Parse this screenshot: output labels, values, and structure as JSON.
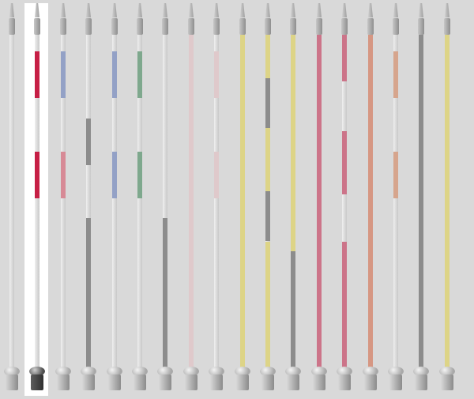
{
  "palette": {
    "background": "#d9d9d9",
    "crimson": "#c61f45",
    "blue": "#93a1c6",
    "green": "#7ea88d",
    "gray": "#8c8c8c",
    "pink": "#d78a96",
    "lightpink": "#dfc9cb",
    "yellow": "#ddd487",
    "rose": "#cc7489",
    "salmon": "#d69783",
    "peach": "#d6a58d"
  },
  "poles": [
    {
      "name": "pole-1",
      "selected": false,
      "segments": []
    },
    {
      "name": "pole-2",
      "selected": true,
      "segments": [
        {
          "fill": 0.05,
          "height": 0.14,
          "color": "#c61f45"
        },
        {
          "fill": 0.35,
          "height": 0.14,
          "color": "#c61f45"
        }
      ]
    },
    {
      "name": "pole-3",
      "selected": false,
      "segments": [
        {
          "fill": 0.05,
          "height": 0.14,
          "color": "#93a1c6"
        },
        {
          "fill": 0.35,
          "height": 0.14,
          "color": "#d78a96"
        }
      ]
    },
    {
      "name": "pole-4",
      "selected": false,
      "segments": [
        {
          "fill": 0.25,
          "height": 0.14,
          "color": "#8c8c8c"
        },
        {
          "fill": 0.55,
          "height": 0.45,
          "color": "#8c8c8c"
        }
      ]
    },
    {
      "name": "pole-5",
      "selected": false,
      "segments": [
        {
          "fill": 0.05,
          "height": 0.14,
          "color": "#93a1c6"
        },
        {
          "fill": 0.35,
          "height": 0.14,
          "color": "#93a1c6"
        }
      ]
    },
    {
      "name": "pole-6",
      "selected": false,
      "segments": [
        {
          "fill": 0.05,
          "height": 0.14,
          "color": "#7ea88d"
        },
        {
          "fill": 0.35,
          "height": 0.14,
          "color": "#7ea88d"
        }
      ]
    },
    {
      "name": "pole-7",
      "selected": false,
      "segments": [
        {
          "fill": 0.55,
          "height": 0.45,
          "color": "#8c8c8c"
        }
      ]
    },
    {
      "name": "pole-8",
      "selected": false,
      "segments": [
        {
          "fill": 0.0,
          "height": 1.0,
          "color": "#dfc9cb"
        }
      ]
    },
    {
      "name": "pole-9",
      "selected": false,
      "segments": [
        {
          "fill": 0.05,
          "height": 0.14,
          "color": "#dfc9cb"
        },
        {
          "fill": 0.35,
          "height": 0.14,
          "color": "#dfc9cb"
        }
      ]
    },
    {
      "name": "pole-10",
      "selected": false,
      "segments": [
        {
          "fill": 0.0,
          "height": 1.0,
          "color": "#ddd487"
        }
      ]
    },
    {
      "name": "pole-11",
      "selected": false,
      "segments": [
        {
          "fill": 0.0,
          "height": 0.13,
          "color": "#ddd487"
        },
        {
          "fill": 0.13,
          "height": 0.15,
          "color": "#8c8c8c"
        },
        {
          "fill": 0.28,
          "height": 0.19,
          "color": "#ddd487"
        },
        {
          "fill": 0.47,
          "height": 0.15,
          "color": "#8c8c8c"
        },
        {
          "fill": 0.62,
          "height": 0.38,
          "color": "#ddd487"
        }
      ]
    },
    {
      "name": "pole-12",
      "selected": false,
      "segments": [
        {
          "fill": 0.0,
          "height": 0.65,
          "color": "#ddd487"
        },
        {
          "fill": 0.65,
          "height": 0.35,
          "color": "#8c8c8c"
        }
      ]
    },
    {
      "name": "pole-13",
      "selected": false,
      "segments": [
        {
          "fill": 0.0,
          "height": 1.0,
          "color": "#cc7489"
        }
      ]
    },
    {
      "name": "pole-14",
      "selected": false,
      "segments": [
        {
          "fill": 0.0,
          "height": 0.14,
          "color": "#cc7489"
        },
        {
          "fill": 0.29,
          "height": 0.19,
          "color": "#cc7489"
        },
        {
          "fill": 0.62,
          "height": 0.38,
          "color": "#cc7489"
        }
      ]
    },
    {
      "name": "pole-15",
      "selected": false,
      "segments": [
        {
          "fill": 0.0,
          "height": 1.0,
          "color": "#d69783"
        }
      ]
    },
    {
      "name": "pole-16",
      "selected": false,
      "segments": [
        {
          "fill": 0.05,
          "height": 0.14,
          "color": "#d6a58d"
        },
        {
          "fill": 0.35,
          "height": 0.14,
          "color": "#d6a58d"
        }
      ]
    },
    {
      "name": "pole-17",
      "selected": false,
      "segments": [
        {
          "fill": 0.0,
          "height": 1.0,
          "color": "#8c8c8c"
        }
      ]
    },
    {
      "name": "pole-18",
      "selected": false,
      "segments": [
        {
          "fill": 0.0,
          "height": 1.0,
          "color": "#ddd487"
        }
      ]
    }
  ]
}
